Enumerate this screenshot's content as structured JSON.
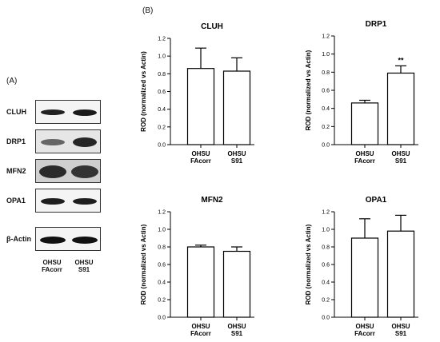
{
  "panels": {
    "a_label": "(A)",
    "b_label": "(B)"
  },
  "blots": {
    "rows": [
      {
        "label": "CLUH"
      },
      {
        "label": "DRP1"
      },
      {
        "label": "MFN2"
      },
      {
        "label": "OPA1"
      },
      {
        "label": "β-Actin"
      }
    ],
    "lanes": [
      {
        "line1": "OHSU",
        "line2": "FAcorr"
      },
      {
        "line1": "OHSU",
        "line2": "S91"
      }
    ]
  },
  "chart_data": [
    {
      "type": "bar",
      "title": "CLUH",
      "ylabel": "ROD (normalized vs Actin)",
      "ylim": [
        0,
        1.2
      ],
      "yticks": [
        "0.0",
        "0.2",
        "0.4",
        "0.6",
        "0.8",
        "1.0",
        "1.2"
      ],
      "categories": [
        [
          "OHSU",
          "FAcorr"
        ],
        [
          "OHSU",
          "S91"
        ]
      ],
      "values": [
        0.86,
        0.83
      ],
      "errors": [
        0.23,
        0.15
      ],
      "annotations": [
        "",
        ""
      ]
    },
    {
      "type": "bar",
      "title": "DRP1",
      "ylabel": "ROD (normalized vs Actin)",
      "ylim": [
        0,
        1.2
      ],
      "yticks": [
        "0.0",
        "0.2",
        "0.4",
        "0.6",
        "0.8",
        "1.0",
        "1.2"
      ],
      "categories": [
        [
          "OHSU",
          "FAcorr"
        ],
        [
          "OHSU",
          "S91"
        ]
      ],
      "values": [
        0.46,
        0.79
      ],
      "errors": [
        0.03,
        0.08
      ],
      "annotations": [
        "",
        "**"
      ]
    },
    {
      "type": "bar",
      "title": "MFN2",
      "ylabel": "ROD (normalized vs Actin)",
      "ylim": [
        0,
        1.2
      ],
      "yticks": [
        "0.0",
        "0.2",
        "0.4",
        "0.6",
        "0.8",
        "1.0",
        "1.2"
      ],
      "categories": [
        [
          "OHSU",
          "FAcorr"
        ],
        [
          "OHSU",
          "S91"
        ]
      ],
      "values": [
        0.8,
        0.75
      ],
      "errors": [
        0.02,
        0.05
      ],
      "annotations": [
        "",
        ""
      ]
    },
    {
      "type": "bar",
      "title": "OPA1",
      "ylabel": "ROD (normalized vs Actin)",
      "ylim": [
        0,
        1.2
      ],
      "yticks": [
        "0.0",
        "0.2",
        "0.4",
        "0.6",
        "0.8",
        "1.0",
        "1.2"
      ],
      "categories": [
        [
          "OHSU",
          "FAcorr"
        ],
        [
          "OHSU",
          "S91"
        ]
      ],
      "values": [
        0.9,
        0.98
      ],
      "errors": [
        0.22,
        0.18
      ],
      "annotations": [
        "",
        ""
      ]
    }
  ]
}
